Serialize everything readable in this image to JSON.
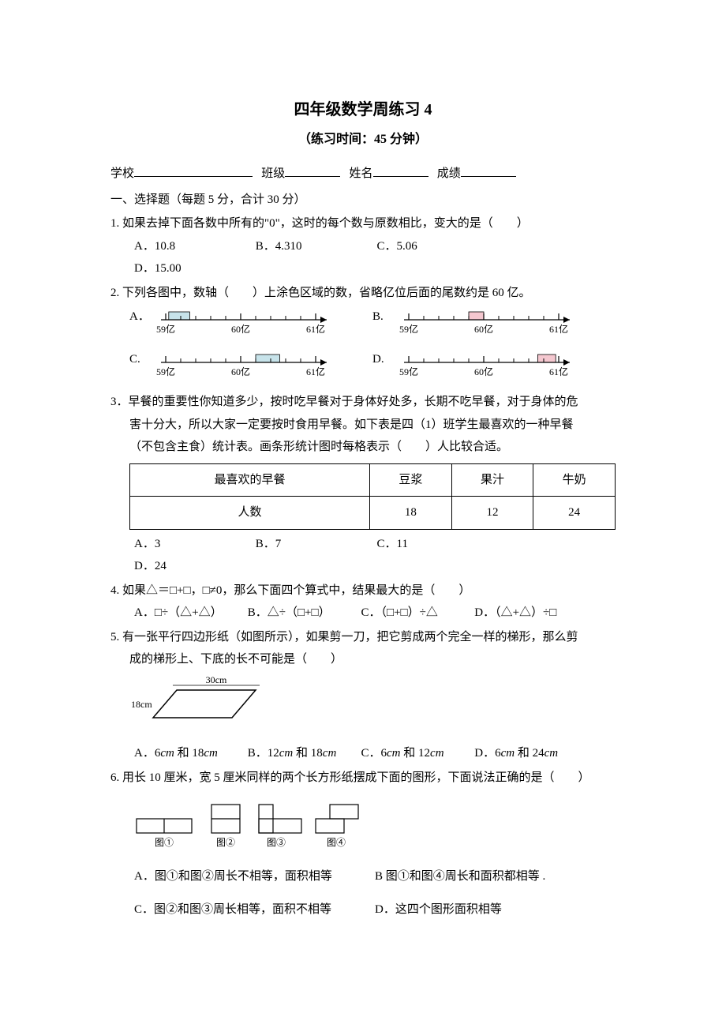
{
  "title": "四年级数学周练习 4",
  "subtitle": "（练习时间：45 分钟）",
  "info": {
    "school_label": "学校",
    "class_label": "班级",
    "name_label": "姓名",
    "score_label": "成绩"
  },
  "section1_head": "一、选择题（每题 5 分，合计 30 分）",
  "q1": {
    "stem": "1. 如果去掉下面各数中所有的\"0\"，这时的每个数与原数相比，变大的是（　　）",
    "A": "A．10.8",
    "B": "B．4.310",
    "C": "C．5.06",
    "D": "D．15.00"
  },
  "q2": {
    "stem": "2. 下列各图中，数轴（　　）上涂色区域的数，省略亿位后面的尾数约是 60 亿。",
    "labels": {
      "A": "A．",
      "B": "B.",
      "C": "C.",
      "D": "D."
    },
    "ticks": [
      "59亿",
      "60亿",
      "61亿"
    ],
    "lines": {
      "A": {
        "shade_start": 0.02,
        "shade_end": 0.16,
        "fill": "#c7e3ea"
      },
      "B": {
        "shade_start": 0.4,
        "shade_end": 0.5,
        "fill": "#f4c7cf"
      },
      "C": {
        "shade_start": 0.6,
        "shade_end": 0.76,
        "fill": "#c7e3ea"
      },
      "D": {
        "shade_start": 0.86,
        "shade_end": 0.98,
        "fill": "#f4c7cf"
      }
    }
  },
  "q3": {
    "stem1": "3．早餐的重要性你知道多少，按时吃早餐对于身体好处多，长期不吃早餐，对于身体的危",
    "stem2": "害十分大，所以大家一定要按时食用早餐。如下表是四（1）班学生最喜欢的一种早餐",
    "stem3": "（不包含主食）统计表。画条形统计图时每格表示（　　）人比较合适。",
    "table": {
      "header": [
        "最喜欢的早餐",
        "豆浆",
        "果汁",
        "牛奶"
      ],
      "row": [
        "人数",
        "18",
        "12",
        "24"
      ]
    },
    "A": "A．3",
    "B": "B．7",
    "C": "C．11",
    "D": "D．24"
  },
  "q4": {
    "stem": "4. 如果△＝□+□，□≠0，那么下面四个算式中，结果最大的是（　　）",
    "A": "A．□÷（△+△）",
    "B": "B．△÷（□+□）",
    "C": "C．（□+□）÷△",
    "D": "D．（△+△）÷□"
  },
  "q5": {
    "stem1": "5. 有一张平行四边形纸（如图所示），如果剪一刀，把它剪成两个完全一样的梯形，那么剪",
    "stem2": "成的梯形上、下底的长不可能是（　　）",
    "fig": {
      "top": "30cm",
      "side": "18cm"
    },
    "A_pre": "A．6",
    "A_mid": " 和 18",
    "B_pre": "B．12",
    "B_mid": " 和 18",
    "C_pre": "C．6",
    "C_mid": " 和 12",
    "D_pre": "D．6",
    "D_mid": " 和 24",
    "unit": "cm"
  },
  "q6": {
    "stem": "6. 用长 10 厘米，宽 5 厘米同样的两个长方形纸摆成下面的图形，下面说法正确的是（　　）",
    "fig_labels": {
      "f1": "图①",
      "f2": "图②",
      "f3": "图③",
      "f4": "图④"
    },
    "A": "A．图①和图②周长不相等，面积相等",
    "B": "B  图①和图④周长和面积都相等 .",
    "C": "C．图②和图③周长相等，面积不相等",
    "D": "D．这四个图形面积相等"
  }
}
